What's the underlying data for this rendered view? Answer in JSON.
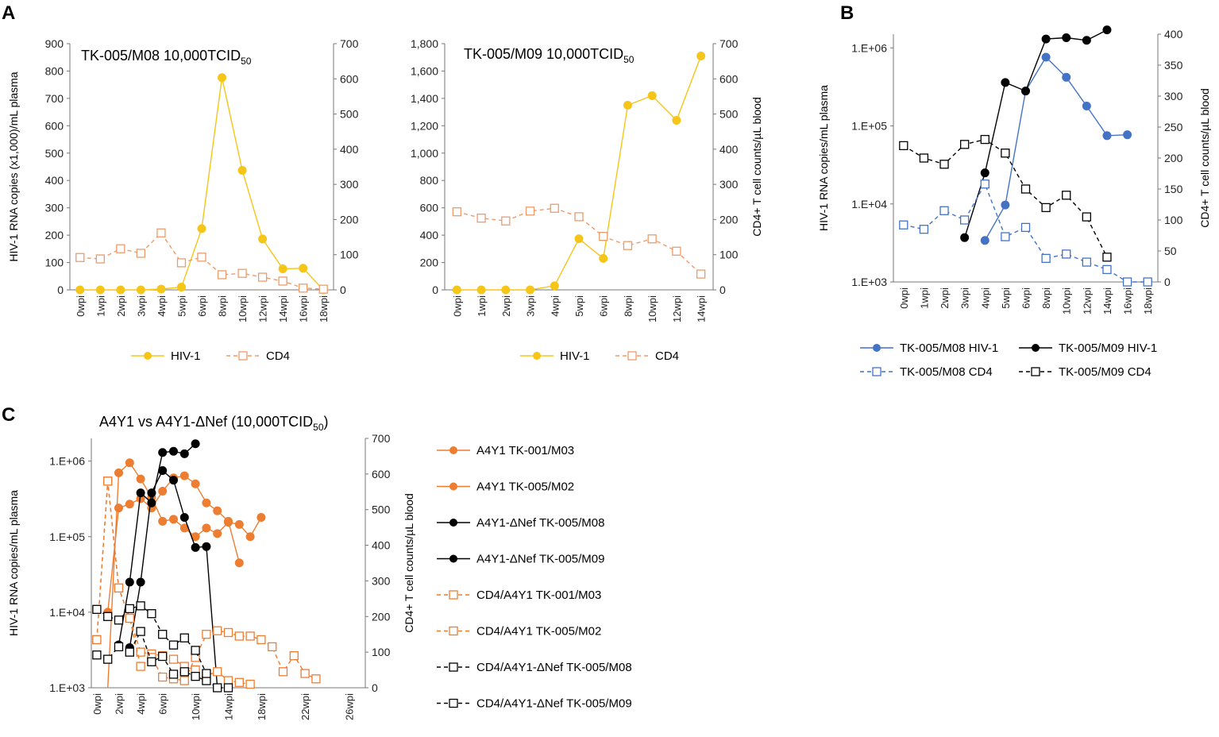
{
  "panels": {
    "A": "A",
    "B": "B",
    "C": "C"
  },
  "colors": {
    "hiv_yellow": "#F5C518",
    "cd4_orange_light": "#EE9B6A",
    "blue": "#4472C4",
    "black": "#000000",
    "orange": "#ED7D31",
    "axis": "#777777"
  },
  "chart_data": [
    {
      "id": "A1",
      "type": "line",
      "title_main": "TK-005/M08 10,000TCID",
      "title_sub": "50",
      "categories": [
        "0wpi",
        "1wpi",
        "2wpi",
        "3wpi",
        "4wpi",
        "5wpi",
        "6wpi",
        "8wpi",
        "10wpi",
        "12wpi",
        "14wpi",
        "16wpi",
        "18wpi"
      ],
      "ylabel": "HIV-1 RNA copies (x1,000)/mL plasma",
      "y2label": "",
      "ylim": [
        0,
        900
      ],
      "yticks": [
        "0",
        "100",
        "200",
        "300",
        "400",
        "500",
        "600",
        "700",
        "800",
        "900"
      ],
      "y2lim": [
        0,
        700
      ],
      "y2ticks": [
        "0",
        "100",
        "200",
        "300",
        "400",
        "500",
        "600",
        "700"
      ],
      "series": [
        {
          "name": "HIV-1",
          "axis": "left",
          "style": "solid-dot",
          "color": "#F5C518",
          "values": [
            0,
            0,
            0,
            0,
            3,
            10,
            224,
            776,
            437,
            186,
            77,
            79,
            0
          ]
        },
        {
          "name": "CD4",
          "axis": "right",
          "style": "dashed-square",
          "color": "#EE9B6A",
          "values": [
            92,
            88,
            117,
            104,
            162,
            77,
            93,
            43,
            47,
            36,
            25,
            5,
            2
          ]
        }
      ],
      "legend": [
        "HIV-1",
        "CD4"
      ]
    },
    {
      "id": "A2",
      "type": "line",
      "title_main": "TK-005/M09 10,000TCID",
      "title_sub": "50",
      "categories": [
        "0wpi",
        "1wpi",
        "2wpi",
        "3wpi",
        "4wpi",
        "5wpi",
        "6wpi",
        "8wpi",
        "10wpi",
        "12wpi",
        "14wpi"
      ],
      "ylabel": "",
      "y2label": "CD4+ T cell counts/µL blood",
      "ylim": [
        0,
        1800
      ],
      "yticks": [
        "0",
        "200",
        "400",
        "600",
        "800",
        "1,000",
        "1,200",
        "1,400",
        "1,600",
        "1,800"
      ],
      "y2lim": [
        0,
        700
      ],
      "y2ticks": [
        "0",
        "100",
        "200",
        "300",
        "400",
        "500",
        "600",
        "700"
      ],
      "series": [
        {
          "name": "HIV-1",
          "axis": "left",
          "style": "solid-dot",
          "color": "#F5C518",
          "values": [
            0,
            0,
            0,
            0,
            30,
            374,
            230,
            1350,
            1420,
            1240,
            1710
          ]
        },
        {
          "name": "CD4",
          "axis": "right",
          "style": "dashed-square",
          "color": "#EE9B6A",
          "values": [
            222,
            204,
            196,
            224,
            232,
            208,
            152,
            126,
            145,
            110,
            45
          ]
        }
      ],
      "legend": [
        "HIV-1",
        "CD4"
      ]
    },
    {
      "id": "B",
      "type": "line",
      "categories": [
        "0wpi",
        "1wpi",
        "2wpi",
        "3wpi",
        "4wpi",
        "5wpi",
        "6wpi",
        "8wpi",
        "10wpi",
        "12wpi",
        "14wpi",
        "16wpi",
        "18wpi"
      ],
      "ylabel": "HIV-1 RNA copies/mL plasma",
      "y2label": "CD4+ T cell counts/µL blood",
      "yscale": "log",
      "ylim": [
        1000,
        1500000
      ],
      "yticks": [
        "1.E+03",
        "1.E+04",
        "1.E+05",
        "1.E+06"
      ],
      "y2lim": [
        0,
        400
      ],
      "y2ticks": [
        "0",
        "50",
        "100",
        "150",
        "200",
        "250",
        "300",
        "350",
        "400"
      ],
      "series": [
        {
          "name": "TK-005/M08 HIV-1",
          "axis": "left",
          "style": "solid-dot",
          "color": "#4472C4",
          "values": [
            null,
            null,
            null,
            null,
            3400,
            9700,
            280000,
            760000,
            420000,
            180000,
            75000,
            77000,
            null
          ]
        },
        {
          "name": "TK-005/M09 HIV-1",
          "axis": "left",
          "style": "solid-dot",
          "color": "#000000",
          "values": [
            null,
            null,
            null,
            3700,
            25000,
            360000,
            280000,
            1300000,
            1350000,
            1250000,
            1700000,
            null,
            null
          ]
        },
        {
          "name": "TK-005/M08 CD4",
          "axis": "right",
          "style": "dashed-square",
          "color": "#4472C4",
          "values": [
            92,
            85,
            115,
            100,
            158,
            73,
            88,
            38,
            45,
            32,
            20,
            0,
            0
          ]
        },
        {
          "name": "TK-005/M09 CD4",
          "axis": "right",
          "style": "dashed-square",
          "color": "#000000",
          "values": [
            220,
            200,
            190,
            222,
            230,
            208,
            150,
            120,
            140,
            105,
            40,
            null,
            null
          ]
        }
      ],
      "legend": [
        "TK-005/M08 HIV-1",
        "TK-005/M09 HIV-1",
        "TK-005/M08 CD4",
        "TK-005/M09 CD4"
      ]
    },
    {
      "id": "C",
      "type": "line",
      "title_main": "A4Y1 vs  A4Y1-ΔNef (10,000TCID",
      "title_sub": "50",
      "title_end": ")",
      "categories": [
        "0wpi",
        "",
        "2wpi",
        "",
        "4wpi",
        "",
        "6wpi",
        "",
        "",
        "10wpi",
        "",
        "",
        "14wpi",
        "",
        "",
        "18wpi",
        "",
        "",
        "",
        "22wpi",
        "",
        "",
        "",
        "26wpi",
        ""
      ],
      "ylabel": "HIV-1 RNA copies/mL plasma",
      "y2label": "CD4+ T cell counts/µL blood",
      "yscale": "log",
      "ylim": [
        1000,
        2000000
      ],
      "yticks": [
        "1.E+03",
        "1.E+04",
        "1.E+05",
        "1.E+06"
      ],
      "y2lim": [
        0,
        700
      ],
      "y2ticks": [
        "0",
        "100",
        "200",
        "300",
        "400",
        "500",
        "600",
        "700"
      ],
      "series": [
        {
          "name": "A4Y1 TK-001/M03",
          "axis": "left",
          "style": "solid-dot",
          "color": "#ED7D31",
          "x": [
            0,
            1,
            2,
            3,
            4,
            5,
            6,
            7,
            8,
            9,
            10,
            11,
            12,
            13,
            14,
            15,
            16,
            17,
            18,
            19,
            20,
            21,
            22,
            23
          ],
          "values": [
            null,
            700,
            700000,
            950000,
            580000,
            330000,
            160000,
            170000,
            130000,
            100000,
            130000,
            110000,
            155000,
            145000,
            100000,
            180000,
            null,
            null,
            null,
            null,
            null,
            null,
            null,
            null
          ]
        },
        {
          "name": "A4Y1 TK-005/M02",
          "axis": "left",
          "style": "solid-dot",
          "color": "#ED7D31",
          "x": [
            0,
            1,
            2,
            3,
            4,
            5,
            6,
            7,
            8,
            9,
            10,
            11,
            12,
            13,
            14,
            15,
            16,
            17,
            18,
            19,
            20,
            21,
            22,
            23
          ],
          "values": [
            null,
            10000,
            240000,
            270000,
            320000,
            240000,
            400000,
            600000,
            640000,
            500000,
            280000,
            220000,
            160000,
            45000,
            null,
            null,
            null,
            null,
            null,
            null,
            null,
            null,
            null,
            null
          ]
        },
        {
          "name": "A4Y1-ΔNef TK-005/M08",
          "axis": "left",
          "style": "solid-dot",
          "color": "#000000",
          "x": [
            0,
            1,
            2,
            3,
            4,
            5,
            6,
            7,
            8,
            9,
            10,
            11,
            12,
            13
          ],
          "values": [
            null,
            null,
            null,
            3400,
            25000,
            380000,
            750000,
            560000,
            180000,
            72000,
            74000,
            600,
            null,
            null
          ]
        },
        {
          "name": "A4Y1-ΔNef TK-005/M09",
          "axis": "left",
          "style": "solid-dot",
          "color": "#000000",
          "x": [
            0,
            1,
            2,
            3,
            4,
            5,
            6,
            7,
            8,
            9,
            10,
            11,
            12,
            13
          ],
          "values": [
            null,
            null,
            3700,
            25000,
            380000,
            280000,
            1300000,
            1350000,
            1250000,
            1700000,
            null,
            null,
            null,
            null
          ]
        },
        {
          "name": "CD4/A4Y1 TK-001/M03",
          "axis": "right",
          "style": "dashed-square",
          "color": "#ED7D31",
          "x": [
            0,
            1,
            2,
            3,
            4,
            5,
            6,
            7,
            8,
            9,
            10,
            11,
            12,
            13,
            14
          ],
          "values": [
            135,
            580,
            280,
            195,
            100,
            95,
            90,
            80,
            60,
            50,
            35,
            45,
            20,
            15,
            10
          ]
        },
        {
          "name": "CD4/A4Y1 TK-005/M02",
          "axis": "right",
          "style": "dashed-square",
          "color": "#ED7D31",
          "x": [
            0,
            1,
            2,
            3,
            4,
            5,
            6,
            7,
            8,
            9,
            10,
            11,
            12,
            13,
            14,
            15,
            16,
            17,
            18,
            19,
            20,
            21,
            22,
            23
          ],
          "values": [
            135,
            580,
            280,
            195,
            60,
            85,
            30,
            25,
            20,
            85,
            150,
            160,
            155,
            145,
            145,
            135,
            115,
            45,
            90,
            40,
            25,
            null,
            null,
            null
          ]
        },
        {
          "name": "CD4/A4Y1-ΔNef  TK-005/M08",
          "axis": "right",
          "style": "dashed-square",
          "color": "#000000",
          "x": [
            0,
            1,
            2,
            3,
            4,
            5,
            6,
            7,
            8,
            9,
            10,
            11,
            12,
            13
          ],
          "values": [
            92,
            80,
            115,
            100,
            158,
            73,
            88,
            38,
            45,
            32,
            20,
            0,
            0,
            null
          ]
        },
        {
          "name": "CD4/A4Y1-ΔNef  TK-005/M09",
          "axis": "right",
          "style": "dashed-square",
          "color": "#000000",
          "x": [
            0,
            1,
            2,
            3,
            4,
            5,
            6,
            7,
            8,
            9,
            10,
            11,
            12,
            13
          ],
          "values": [
            220,
            200,
            190,
            222,
            230,
            208,
            150,
            120,
            140,
            105,
            40,
            null,
            null,
            null
          ]
        }
      ],
      "legend": [
        "A4Y1 TK-001/M03",
        "A4Y1 TK-005/M02",
        "A4Y1-ΔNef TK-005/M08",
        "A4Y1-ΔNef TK-005/M09",
        "CD4/A4Y1 TK-001/M03",
        "CD4/A4Y1 TK-005/M02",
        "CD4/A4Y1-ΔNef  TK-005/M08",
        "CD4/A4Y1-ΔNef  TK-005/M09"
      ]
    }
  ]
}
